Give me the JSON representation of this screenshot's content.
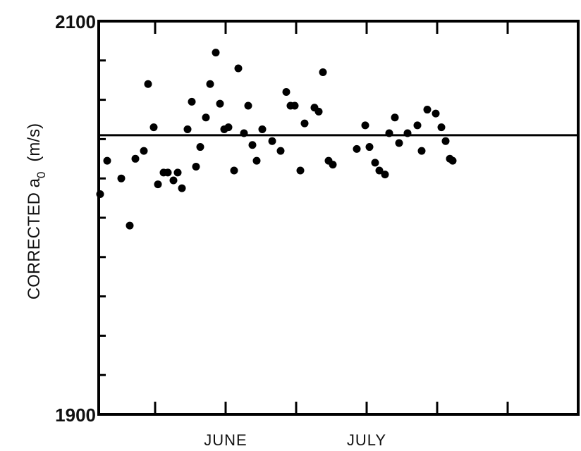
{
  "chart_data": {
    "type": "scatter",
    "ylabel": "CORRECTED a",
    "ylabel_subscript": "0",
    "ylabel_unit": "(m/s)",
    "ylim": [
      1900,
      2100
    ],
    "ytick_labels": [
      "2100",
      "1900"
    ],
    "y_minor_ticks": [
      1920,
      1940,
      1960,
      1980,
      2000,
      2020,
      2040,
      2060,
      2080
    ],
    "x_tick_labels": [
      "JUNE",
      "JULY"
    ],
    "xlim": [
      0,
      34
    ],
    "x_ticks": [
      4,
      9,
      14,
      19,
      24,
      29
    ],
    "x_label_positions": [
      9,
      19
    ],
    "reference_line": {
      "y": 2042
    },
    "grid": false,
    "points": [
      {
        "x": 0.1,
        "y": 2012
      },
      {
        "x": 0.6,
        "y": 2029
      },
      {
        "x": 1.6,
        "y": 2020
      },
      {
        "x": 2.2,
        "y": 1996
      },
      {
        "x": 2.6,
        "y": 2030
      },
      {
        "x": 3.2,
        "y": 2034
      },
      {
        "x": 3.5,
        "y": 2068
      },
      {
        "x": 3.9,
        "y": 2046
      },
      {
        "x": 4.2,
        "y": 2017
      },
      {
        "x": 4.6,
        "y": 2023
      },
      {
        "x": 4.9,
        "y": 2023
      },
      {
        "x": 5.3,
        "y": 2019
      },
      {
        "x": 5.6,
        "y": 2023
      },
      {
        "x": 5.9,
        "y": 2015
      },
      {
        "x": 6.3,
        "y": 2045
      },
      {
        "x": 6.6,
        "y": 2059
      },
      {
        "x": 6.9,
        "y": 2026
      },
      {
        "x": 7.2,
        "y": 2036
      },
      {
        "x": 7.6,
        "y": 2051
      },
      {
        "x": 7.9,
        "y": 2068
      },
      {
        "x": 8.3,
        "y": 2084
      },
      {
        "x": 8.6,
        "y": 2058
      },
      {
        "x": 8.9,
        "y": 2045
      },
      {
        "x": 9.2,
        "y": 2046
      },
      {
        "x": 9.6,
        "y": 2024
      },
      {
        "x": 9.9,
        "y": 2076
      },
      {
        "x": 10.3,
        "y": 2043
      },
      {
        "x": 10.6,
        "y": 2057
      },
      {
        "x": 10.9,
        "y": 2037
      },
      {
        "x": 11.2,
        "y": 2029
      },
      {
        "x": 11.6,
        "y": 2045
      },
      {
        "x": 12.3,
        "y": 2039
      },
      {
        "x": 12.9,
        "y": 2034
      },
      {
        "x": 13.3,
        "y": 2064
      },
      {
        "x": 13.6,
        "y": 2057
      },
      {
        "x": 13.9,
        "y": 2057
      },
      {
        "x": 14.3,
        "y": 2024
      },
      {
        "x": 14.6,
        "y": 2048
      },
      {
        "x": 15.3,
        "y": 2056
      },
      {
        "x": 15.6,
        "y": 2054
      },
      {
        "x": 15.9,
        "y": 2074
      },
      {
        "x": 16.3,
        "y": 2029
      },
      {
        "x": 16.6,
        "y": 2027
      },
      {
        "x": 18.3,
        "y": 2035
      },
      {
        "x": 18.9,
        "y": 2047
      },
      {
        "x": 19.2,
        "y": 2036
      },
      {
        "x": 19.6,
        "y": 2028
      },
      {
        "x": 19.9,
        "y": 2024
      },
      {
        "x": 20.3,
        "y": 2022
      },
      {
        "x": 20.6,
        "y": 2043
      },
      {
        "x": 21.0,
        "y": 2051
      },
      {
        "x": 21.3,
        "y": 2038
      },
      {
        "x": 21.9,
        "y": 2043
      },
      {
        "x": 22.6,
        "y": 2047
      },
      {
        "x": 22.9,
        "y": 2034
      },
      {
        "x": 23.3,
        "y": 2055
      },
      {
        "x": 23.9,
        "y": 2053
      },
      {
        "x": 24.3,
        "y": 2046
      },
      {
        "x": 24.6,
        "y": 2039
      },
      {
        "x": 24.9,
        "y": 2030
      },
      {
        "x": 25.1,
        "y": 2029
      }
    ]
  }
}
